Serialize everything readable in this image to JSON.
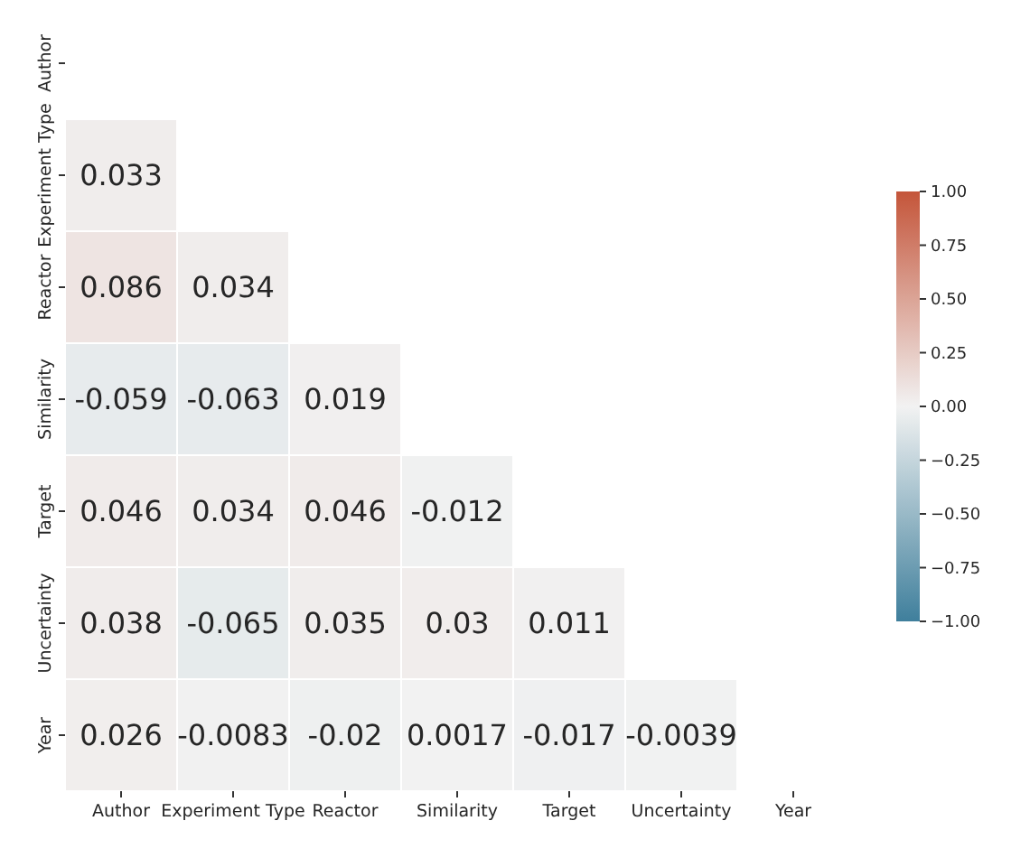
{
  "chart_data": {
    "type": "heatmap",
    "categories": [
      "Author",
      "Experiment Type",
      "Reactor",
      "Similarity",
      "Target",
      "Uncertainty",
      "Year"
    ],
    "y_categories": [
      "Author",
      "Experiment Type",
      "Reactor",
      "Similarity",
      "Target",
      "Uncertainty",
      "Year"
    ],
    "cells": [
      [
        null,
        null,
        null,
        null,
        null,
        null,
        null
      ],
      [
        0.033,
        null,
        null,
        null,
        null,
        null,
        null
      ],
      [
        0.086,
        0.034,
        null,
        null,
        null,
        null,
        null
      ],
      [
        -0.059,
        -0.063,
        0.019,
        null,
        null,
        null,
        null
      ],
      [
        0.046,
        0.034,
        0.046,
        -0.012,
        null,
        null,
        null
      ],
      [
        0.038,
        -0.065,
        0.035,
        0.03,
        0.011,
        null,
        null
      ],
      [
        0.026,
        -0.0083,
        -0.02,
        0.0017,
        -0.017,
        -0.0039,
        null
      ]
    ],
    "data_labels": true,
    "clim": [
      -1,
      1
    ],
    "cticks": [
      {
        "value": -1,
        "label": "−1.00"
      },
      {
        "value": -0.75,
        "label": "−0.75"
      },
      {
        "value": -0.5,
        "label": "−0.50"
      },
      {
        "value": -0.25,
        "label": "−0.25"
      },
      {
        "value": 0,
        "label": "0.00"
      },
      {
        "value": 0.25,
        "label": "0.25"
      },
      {
        "value": 0.5,
        "label": "0.50"
      },
      {
        "value": 0.75,
        "label": "0.75"
      },
      {
        "value": 1,
        "label": "1.00"
      }
    ]
  }
}
